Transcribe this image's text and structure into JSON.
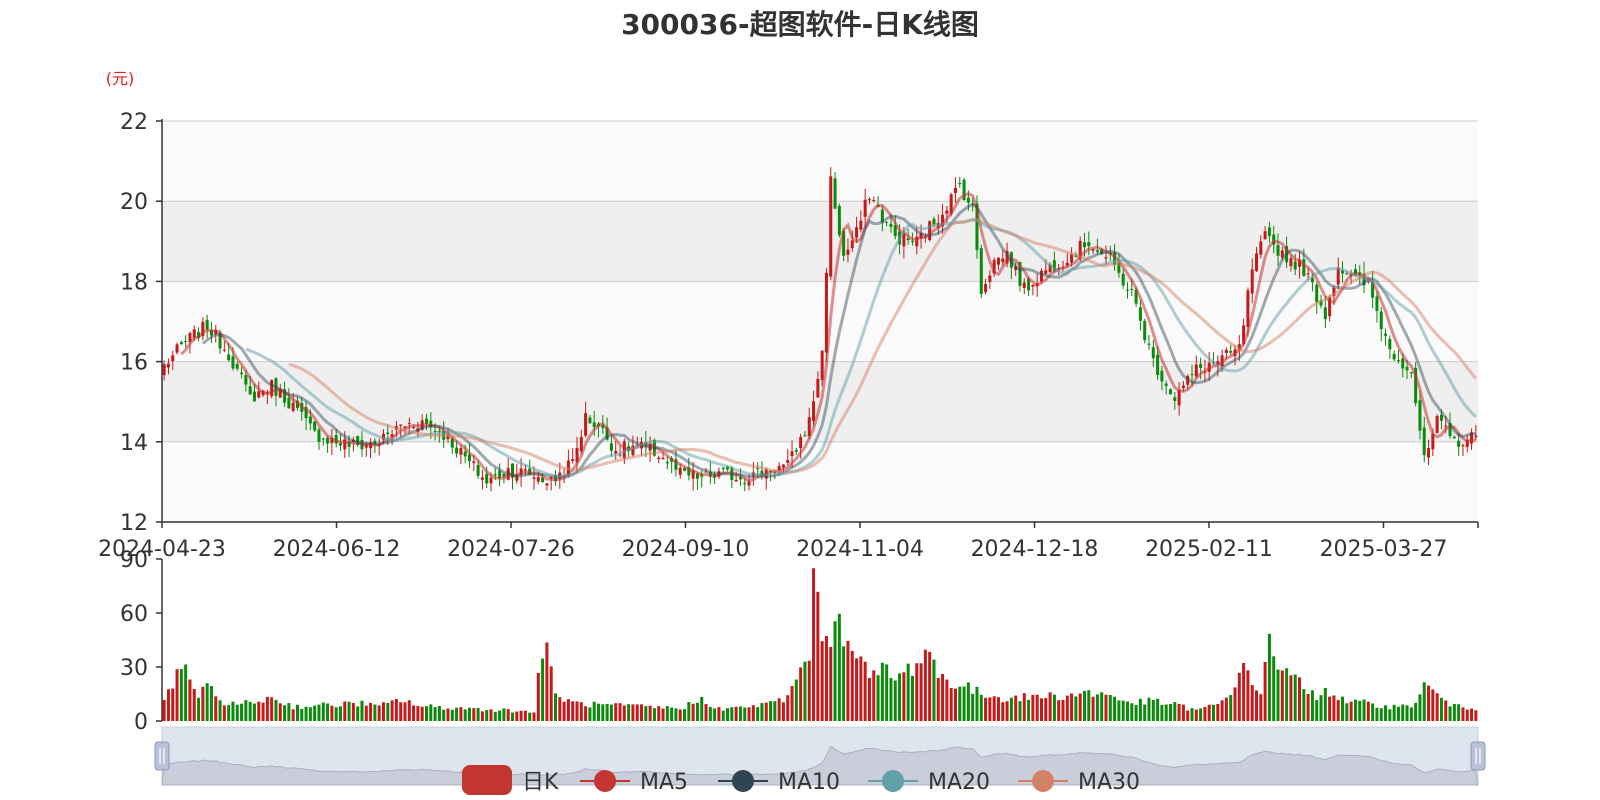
{
  "chart_data": {
    "type": "candlestick",
    "title": "300036-超图软件-日K线图",
    "unit_label": "(元)",
    "price_axis": {
      "ylim": [
        12,
        22
      ],
      "ticks": [
        "22",
        "20",
        "18",
        "16",
        "14",
        "12"
      ]
    },
    "volume_axis": {
      "ylim": [
        0,
        90
      ],
      "ticks": [
        "90",
        "60",
        "30",
        "0"
      ]
    },
    "x_tick_labels": [
      "2024-04-23",
      "2024-06-12",
      "2024-07-26",
      "2024-09-10",
      "2024-11-04",
      "2024-12-18",
      "2025-02-11",
      "2025-03-27"
    ],
    "legend": [
      {
        "name": "日K",
        "color": "#c23531"
      },
      {
        "name": "MA5",
        "color": "#c23531"
      },
      {
        "name": "MA10",
        "color": "#2f4554"
      },
      {
        "name": "MA20",
        "color": "#61a0a8"
      },
      {
        "name": "MA30",
        "color": "#d48265"
      }
    ],
    "colors": {
      "up": "#c41a1a",
      "down": "#0b8a0b",
      "grid_band": "#efefef"
    },
    "close_anchors": [
      [
        0,
        15.9
      ],
      [
        5,
        16.5
      ],
      [
        10,
        16.9
      ],
      [
        15,
        16.2
      ],
      [
        20,
        15.1
      ],
      [
        25,
        15.4
      ],
      [
        30,
        14.9
      ],
      [
        35,
        14.2
      ],
      [
        40,
        14.0
      ],
      [
        45,
        13.9
      ],
      [
        50,
        14.0
      ],
      [
        55,
        14.4
      ],
      [
        60,
        14.5
      ],
      [
        65,
        14.2
      ],
      [
        70,
        13.6
      ],
      [
        75,
        13.0
      ],
      [
        80,
        13.3
      ],
      [
        85,
        13.2
      ],
      [
        90,
        13.0
      ],
      [
        95,
        13.5
      ],
      [
        98,
        14.6
      ],
      [
        101,
        14.4
      ],
      [
        105,
        13.8
      ],
      [
        110,
        13.9
      ],
      [
        115,
        13.7
      ],
      [
        120,
        13.2
      ],
      [
        125,
        13.1
      ],
      [
        130,
        13.2
      ],
      [
        135,
        13.1
      ],
      [
        140,
        13.3
      ],
      [
        145,
        13.4
      ],
      [
        150,
        14.5
      ],
      [
        153,
        16.2
      ],
      [
        155,
        20.5
      ],
      [
        158,
        18.6
      ],
      [
        161,
        19.2
      ],
      [
        164,
        20.2
      ],
      [
        167,
        19.6
      ],
      [
        170,
        19.1
      ],
      [
        175,
        19.0
      ],
      [
        180,
        19.6
      ],
      [
        185,
        20.4
      ],
      [
        188,
        19.8
      ],
      [
        190,
        17.8
      ],
      [
        193,
        18.5
      ],
      [
        196,
        18.7
      ],
      [
        200,
        17.8
      ],
      [
        205,
        18.3
      ],
      [
        210,
        18.6
      ],
      [
        215,
        19.0
      ],
      [
        220,
        18.5
      ],
      [
        225,
        17.7
      ],
      [
        230,
        16.0
      ],
      [
        235,
        15.1
      ],
      [
        240,
        15.8
      ],
      [
        245,
        16.0
      ],
      [
        250,
        16.3
      ],
      [
        253,
        18.3
      ],
      [
        256,
        19.1
      ],
      [
        260,
        18.7
      ],
      [
        265,
        18.3
      ],
      [
        270,
        17.2
      ],
      [
        273,
        18.4
      ],
      [
        276,
        18.1
      ],
      [
        280,
        17.9
      ],
      [
        285,
        16.3
      ],
      [
        290,
        15.8
      ],
      [
        293,
        13.5
      ],
      [
        296,
        14.5
      ],
      [
        300,
        14.0
      ],
      [
        305,
        14.1
      ]
    ],
    "volume_anchors": [
      [
        0,
        10
      ],
      [
        3,
        25
      ],
      [
        5,
        30
      ],
      [
        8,
        14
      ],
      [
        10,
        18
      ],
      [
        15,
        9
      ],
      [
        20,
        10
      ],
      [
        25,
        13
      ],
      [
        30,
        8
      ],
      [
        40,
        9
      ],
      [
        45,
        10
      ],
      [
        50,
        8
      ],
      [
        55,
        12
      ],
      [
        60,
        8
      ],
      [
        70,
        7
      ],
      [
        80,
        6
      ],
      [
        86,
        5
      ],
      [
        88,
        42
      ],
      [
        89,
        37
      ],
      [
        91,
        15
      ],
      [
        95,
        10
      ],
      [
        100,
        9
      ],
      [
        110,
        8
      ],
      [
        120,
        7
      ],
      [
        125,
        12
      ],
      [
        130,
        6
      ],
      [
        135,
        8
      ],
      [
        140,
        9
      ],
      [
        145,
        13
      ],
      [
        148,
        28
      ],
      [
        150,
        40
      ],
      [
        151,
        74
      ],
      [
        152,
        60
      ],
      [
        154,
        45
      ],
      [
        156,
        56
      ],
      [
        158,
        48
      ],
      [
        160,
        48
      ],
      [
        162,
        32
      ],
      [
        165,
        24
      ],
      [
        168,
        30
      ],
      [
        170,
        22
      ],
      [
        175,
        33
      ],
      [
        178,
        40
      ],
      [
        180,
        25
      ],
      [
        185,
        20
      ],
      [
        190,
        15
      ],
      [
        195,
        13
      ],
      [
        200,
        13
      ],
      [
        205,
        14
      ],
      [
        210,
        14
      ],
      [
        215,
        16
      ],
      [
        220,
        14
      ],
      [
        225,
        10
      ],
      [
        230,
        11
      ],
      [
        235,
        9
      ],
      [
        240,
        6
      ],
      [
        245,
        9
      ],
      [
        248,
        15
      ],
      [
        250,
        30
      ],
      [
        252,
        25
      ],
      [
        255,
        16
      ],
      [
        257,
        45
      ],
      [
        258,
        42
      ],
      [
        260,
        24
      ],
      [
        262,
        28
      ],
      [
        265,
        17
      ],
      [
        268,
        14
      ],
      [
        270,
        18
      ],
      [
        275,
        10
      ],
      [
        280,
        10
      ],
      [
        285,
        8
      ],
      [
        290,
        8
      ],
      [
        293,
        20
      ],
      [
        295,
        16
      ],
      [
        300,
        8
      ],
      [
        305,
        7
      ]
    ]
  }
}
